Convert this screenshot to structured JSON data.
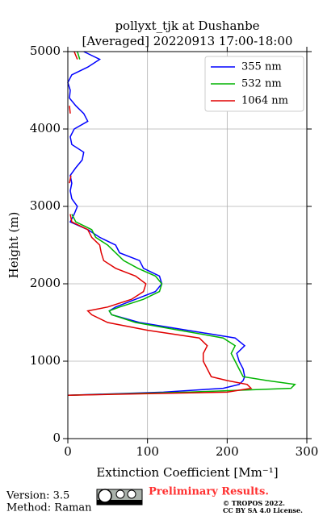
{
  "chart_data": {
    "type": "line",
    "title": [
      "pollyxt_tjk at Dushanbe",
      "[Averaged] 20220913 17:00-18:00"
    ],
    "xlabel": "Extinction Coefficient [Mm⁻¹]",
    "ylabel": "Height (m)",
    "xlim": [
      0,
      300
    ],
    "ylim": [
      0,
      5000
    ],
    "xticks": [
      0,
      100,
      200,
      300
    ],
    "yticks": [
      0,
      1000,
      2000,
      3000,
      4000,
      5000
    ],
    "grid": true,
    "legend": "upper right",
    "y": [
      560,
      600,
      650,
      700,
      750,
      800,
      900,
      1000,
      1100,
      1200,
      1300,
      1400,
      1500,
      1600,
      1650,
      1700,
      1800,
      1900,
      2000,
      2100,
      2200,
      2300,
      2400,
      2500,
      2600,
      2700,
      2800,
      2900,
      3000,
      3100,
      3200,
      3300,
      3400,
      3500,
      3600,
      3700,
      3800,
      3900,
      4000,
      4100,
      4200,
      4300,
      4400,
      4500,
      4600,
      4700,
      4800,
      4900,
      5000
    ],
    "series": [
      {
        "name": "355 nm",
        "color": "#0000ff",
        "values": [
          0,
          120,
          195,
          215,
          220,
          222,
          220,
          215,
          212,
          222,
          210,
          150,
          90,
          55,
          52,
          60,
          85,
          110,
          118,
          115,
          95,
          90,
          65,
          60,
          40,
          25,
          3,
          8,
          12,
          5,
          3,
          5,
          3,
          10,
          18,
          20,
          5,
          3,
          8,
          25,
          20,
          10,
          2,
          3,
          0,
          5,
          25,
          40,
          20
        ]
      },
      {
        "name": "532 nm",
        "color": "#00b400",
        "values": [
          0,
          150,
          280,
          285,
          250,
          220,
          215,
          210,
          205,
          210,
          195,
          140,
          85,
          55,
          52,
          65,
          95,
          115,
          118,
          110,
          88,
          70,
          60,
          50,
          35,
          30,
          10,
          5,
          null,
          null,
          null,
          null,
          null,
          null,
          null,
          null,
          null,
          null,
          null,
          null,
          null,
          null,
          null,
          null,
          null,
          null,
          null,
          15,
          12
        ]
      },
      {
        "name": "1064 nm",
        "color": "#e00000",
        "values": [
          0,
          200,
          230,
          225,
          200,
          180,
          175,
          170,
          170,
          175,
          165,
          100,
          50,
          30,
          25,
          50,
          80,
          95,
          98,
          85,
          60,
          45,
          42,
          40,
          30,
          25,
          5,
          3,
          null,
          null,
          null,
          2,
          4,
          null,
          null,
          null,
          null,
          null,
          null,
          null,
          3,
          2,
          null,
          null,
          null,
          null,
          null,
          12,
          8
        ]
      }
    ]
  },
  "footer": {
    "version": "Version: 3.5",
    "method": "Method: Raman",
    "notice": "Preliminary Results.",
    "copyright": "© TROPOS 2022.",
    "license": "CC BY SA 4.0 License."
  }
}
